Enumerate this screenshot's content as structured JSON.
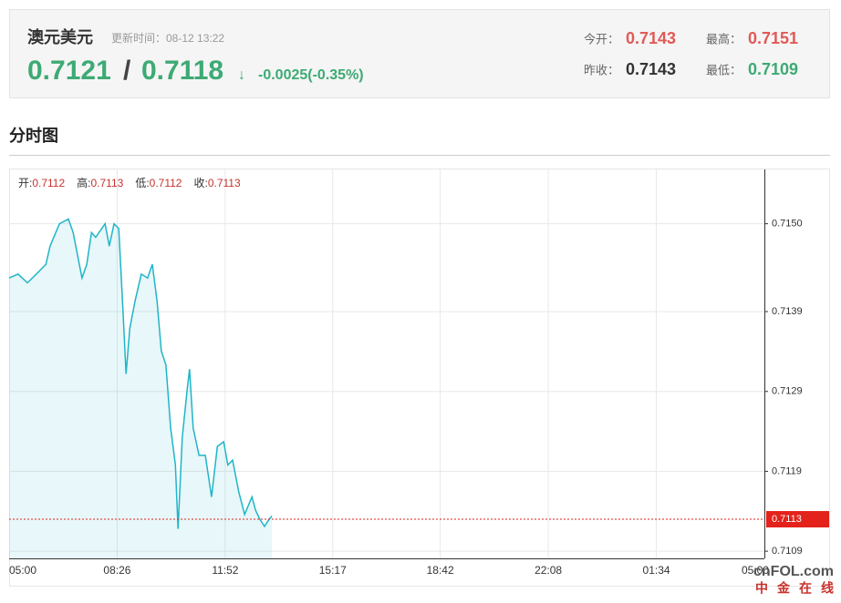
{
  "header": {
    "title": "澳元美元",
    "update_time": "更新时间：08-12 13:22",
    "bid": "0.7121",
    "separator": "/",
    "ask": "0.7118",
    "arrow": "↓",
    "change": "-0.0025(-0.35%)",
    "stats": [
      {
        "label": "今开：",
        "value": "0.7143"
      },
      {
        "label": "最高：",
        "value": "0.7151"
      },
      {
        "label": "昨收：",
        "value": "0.7143"
      },
      {
        "label": "最低：",
        "value": "0.7109"
      }
    ]
  },
  "section_title": "分时图",
  "chart_data": {
    "type": "line",
    "ohlc": [
      {
        "label": "开:",
        "value": "0.7112"
      },
      {
        "label": "高:",
        "value": "0.7113"
      },
      {
        "label": "低:",
        "value": "0.7112"
      },
      {
        "label": "收:",
        "value": "0.7113"
      }
    ],
    "x": [
      0,
      17,
      35,
      52,
      70,
      78,
      96,
      113,
      122,
      139,
      148,
      157,
      165,
      183,
      191,
      200,
      209,
      217,
      223,
      230,
      240,
      252,
      264,
      273,
      282,
      290,
      299,
      308,
      317,
      322,
      330,
      339,
      344,
      351,
      362,
      374,
      386,
      397,
      409,
      417,
      426,
      438,
      449,
      456,
      463,
      470,
      478,
      487,
      496,
      501
    ],
    "series": [
      {
        "color": "#1fb5c9",
        "values": [
          0.71432,
          0.71437,
          0.71426,
          0.71437,
          0.71449,
          0.71472,
          0.715,
          0.71506,
          0.71489,
          0.71432,
          0.71449,
          0.71489,
          0.71483,
          0.715,
          0.71472,
          0.715,
          0.71494,
          0.71392,
          0.71312,
          0.71369,
          0.71403,
          0.71437,
          0.71432,
          0.71449,
          0.71403,
          0.71341,
          0.71323,
          0.71244,
          0.71198,
          0.71118,
          0.71232,
          0.71289,
          0.71318,
          0.71244,
          0.7121,
          0.7121,
          0.71158,
          0.71221,
          0.71227,
          0.71198,
          0.71204,
          0.71164,
          0.71136,
          0.71147,
          0.71158,
          0.71141,
          0.7113,
          0.71121,
          0.7113,
          0.71134
        ]
      }
    ],
    "xlim": [
      0,
      1440
    ],
    "xticks": [
      {
        "value": 0,
        "label": "05:00"
      },
      {
        "value": 206,
        "label": "08:26"
      },
      {
        "value": 412,
        "label": "11:52"
      },
      {
        "value": 617,
        "label": "15:17"
      },
      {
        "value": 822,
        "label": "18:42"
      },
      {
        "value": 1028,
        "label": "22:08"
      },
      {
        "value": 1234,
        "label": "01:34"
      },
      {
        "value": 1440,
        "label": "05:00"
      }
    ],
    "ylim": [
      0.71081,
      0.71568
    ],
    "yticks": [
      0.7109,
      0.7119,
      0.7129,
      0.7139,
      {
        "value": 0.715,
        "label": "0.7150"
      }
    ],
    "grid": true,
    "last_price": 0.7113,
    "last_color": "#e3221b"
  },
  "watermark": {
    "brand": "cnFOL.com",
    "name": "中金在线"
  }
}
